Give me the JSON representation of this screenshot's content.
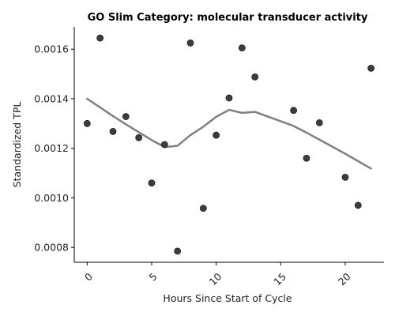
{
  "chart_data": {
    "type": "scatter",
    "title": "GO Slim Category: molecular transducer activity",
    "xlabel": "Hours Since Start of Cycle",
    "ylabel": "Standardized TPL",
    "xlim": [
      -1,
      23
    ],
    "ylim": [
      0.00074,
      0.00169
    ],
    "xticks": [
      0,
      5,
      10,
      15,
      20
    ],
    "xtick_labels": [
      "0",
      "5",
      "10",
      "15",
      "20"
    ],
    "yticks": [
      0.0008,
      0.001,
      0.0012,
      0.0014,
      0.0016
    ],
    "ytick_labels": [
      "0.0008",
      "0.0010",
      "0.0012",
      "0.0014",
      "0.0016"
    ],
    "grid": false,
    "series": [
      {
        "kind": "scatter",
        "color": "#333333",
        "x": [
          0,
          1,
          2,
          3,
          4,
          5,
          6,
          7,
          8,
          9,
          10,
          11,
          12,
          13,
          16,
          17,
          18,
          20,
          21,
          22
        ],
        "y": [
          0.0013,
          0.001645,
          0.001268,
          0.001328,
          0.001243,
          0.00106,
          0.001215,
          0.000785,
          0.001625,
          0.000958,
          0.001253,
          0.001403,
          0.001605,
          0.001488,
          0.001353,
          0.00116,
          0.001303,
          0.001083,
          0.00097,
          0.001523
        ]
      },
      {
        "kind": "line",
        "color": "#808080",
        "x": [
          0,
          1,
          2,
          3,
          4,
          5,
          6,
          7,
          8,
          9,
          10,
          11,
          12,
          13,
          16,
          17,
          18,
          20,
          21,
          22
        ],
        "y": [
          0.0014,
          0.001365,
          0.00133,
          0.001297,
          0.001265,
          0.001233,
          0.001205,
          0.00121,
          0.001253,
          0.001287,
          0.001327,
          0.001355,
          0.001343,
          0.001347,
          0.00129,
          0.001263,
          0.001235,
          0.001178,
          0.001148,
          0.001118
        ]
      }
    ]
  }
}
